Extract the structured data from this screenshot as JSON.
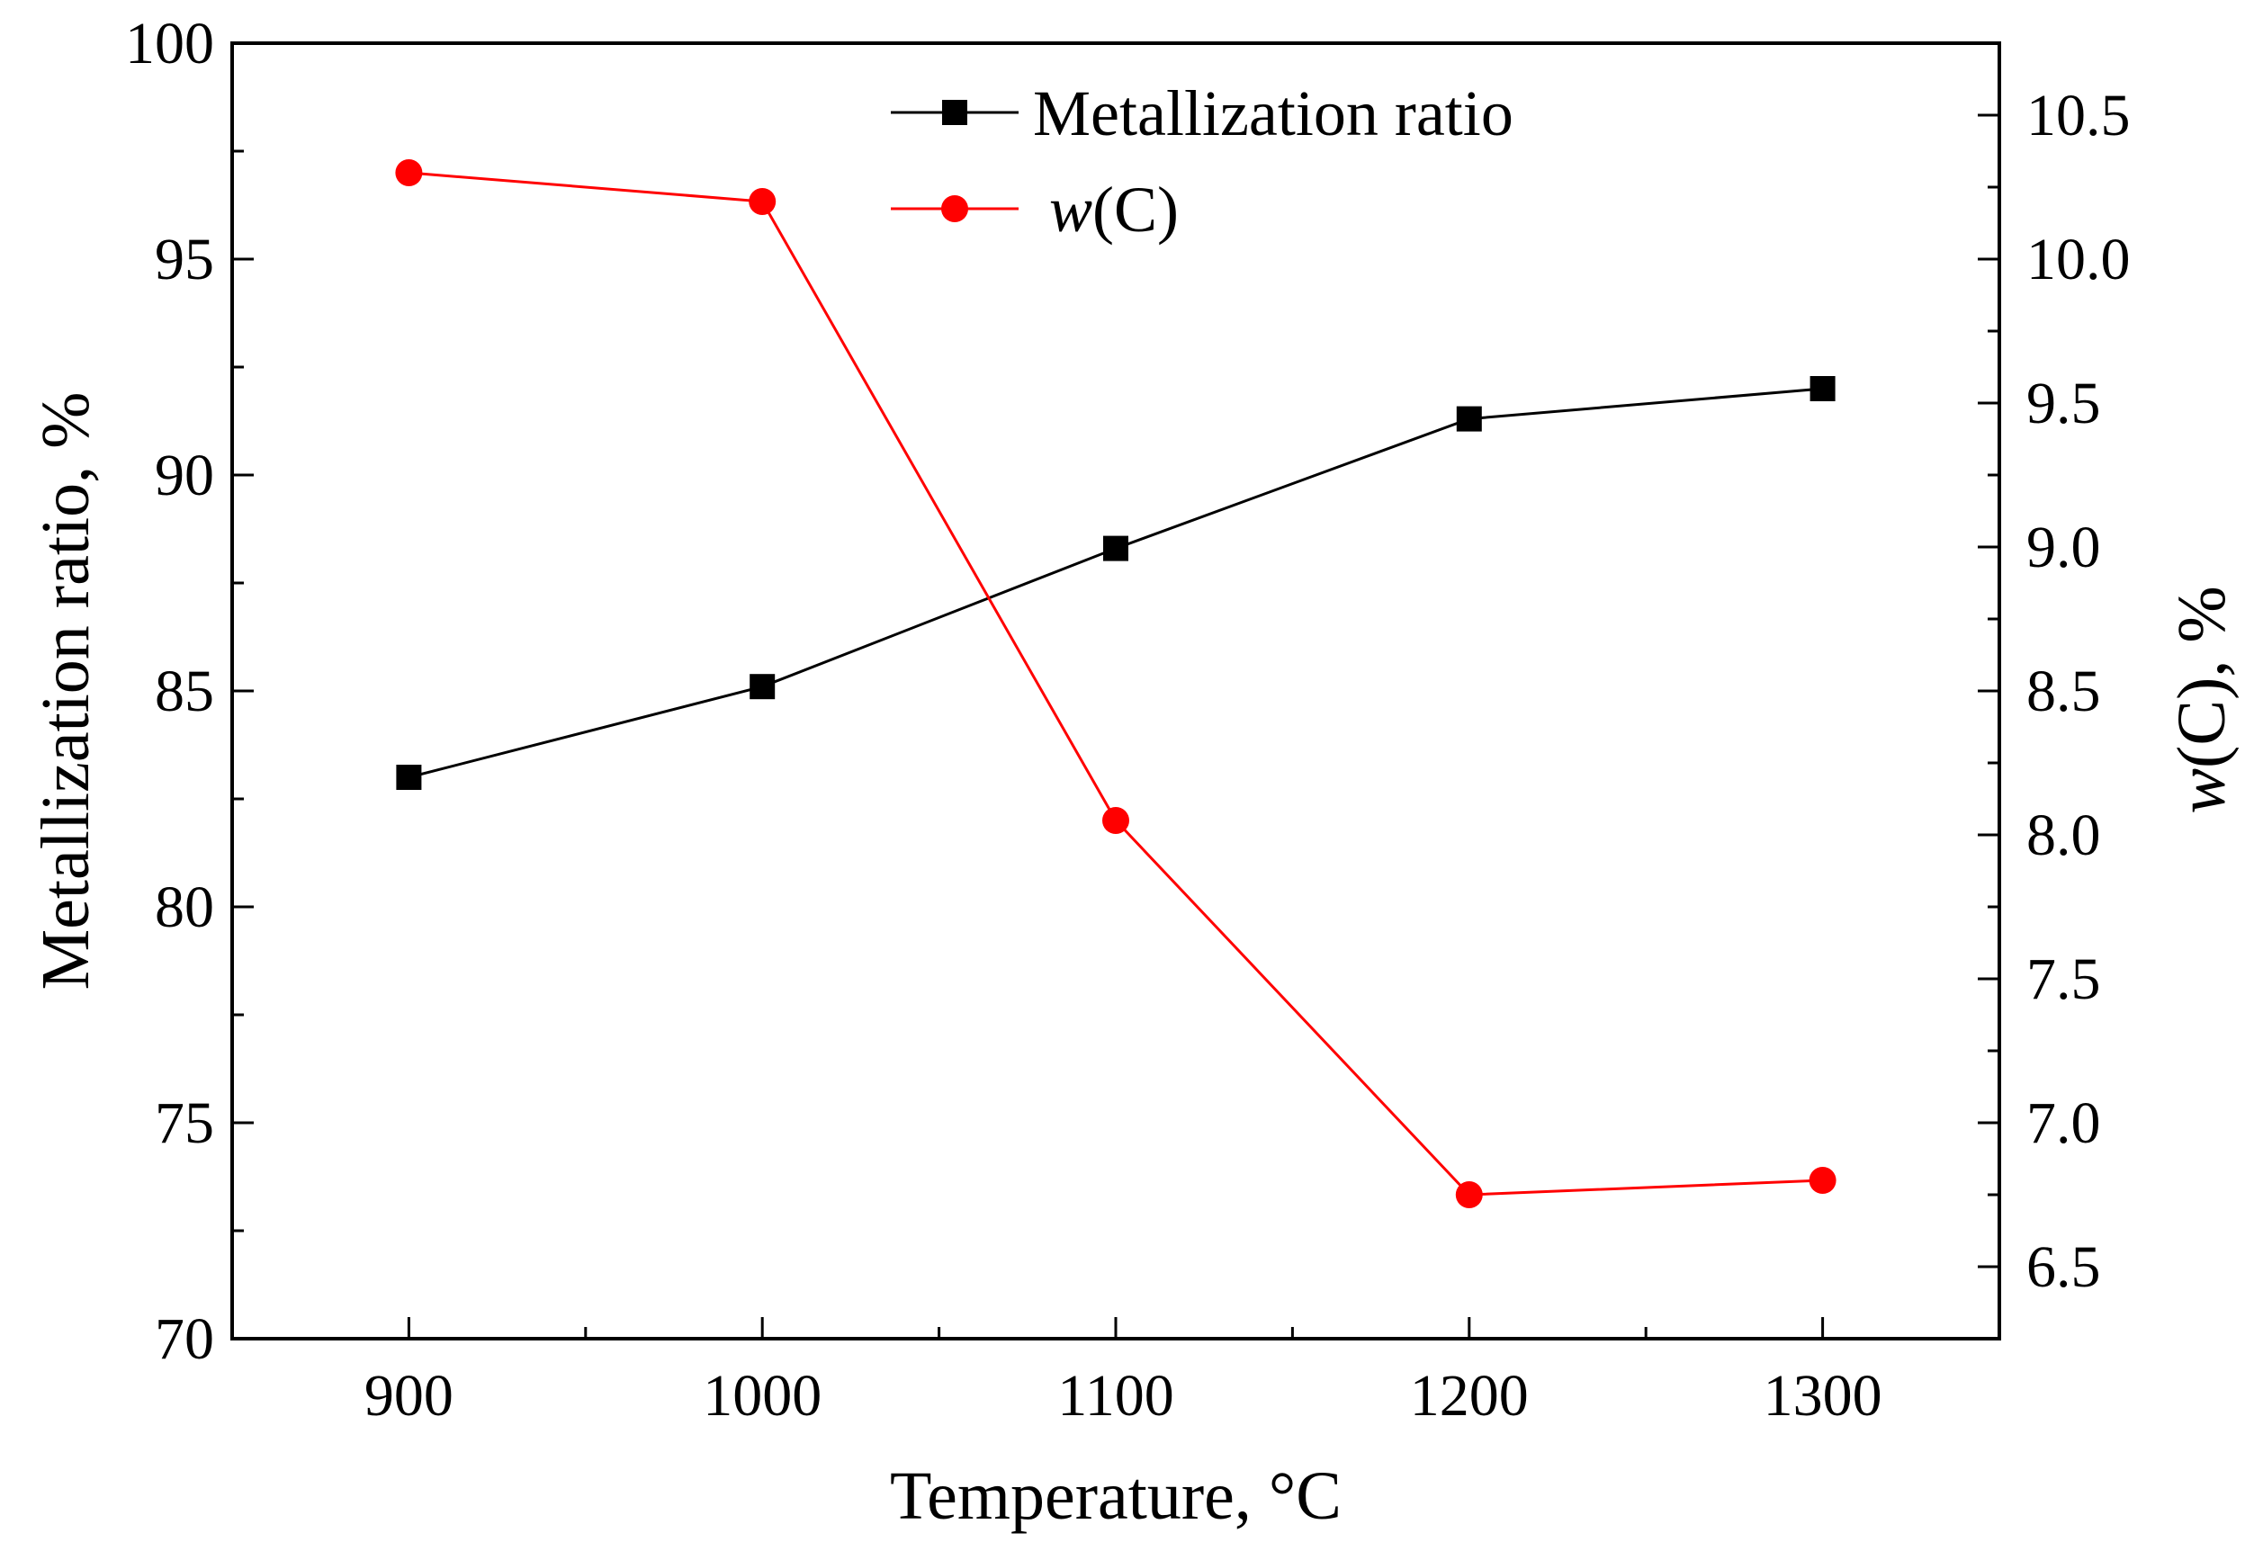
{
  "chart_data": {
    "type": "line",
    "x": [
      900,
      1000,
      1100,
      1200,
      1300
    ],
    "xlim": [
      850,
      1350
    ],
    "xticks": [
      "900",
      "1000",
      "1100",
      "1200",
      "1300"
    ],
    "xlabel": "Temperature,  °C",
    "ylabel_left": "Metallization ratio, %",
    "ylim_left": [
      70,
      100
    ],
    "yticks_left": [
      "70",
      "75",
      "80",
      "85",
      "90",
      "95",
      "100"
    ],
    "ylabel_right_italic": "w",
    "ylabel_right_rest": "(C), %",
    "ylim_right": [
      6.25,
      10.75
    ],
    "yticks_right": [
      "6.5",
      "7.0",
      "7.5",
      "8.0",
      "8.5",
      "9.0",
      "9.5",
      "10.0",
      "10.5"
    ],
    "legend_position": "top-center",
    "series": [
      {
        "name": "Metallization ratio",
        "axis": "left",
        "marker": "square",
        "color": "#000000",
        "values": [
          83.0,
          85.1,
          88.3,
          91.3,
          92.0
        ]
      },
      {
        "name_italic": "w",
        "name_rest": "(C)",
        "axis": "right",
        "marker": "circle",
        "color": "#ff0000",
        "values": [
          10.3,
          10.2,
          8.05,
          6.75,
          6.8
        ]
      }
    ]
  }
}
